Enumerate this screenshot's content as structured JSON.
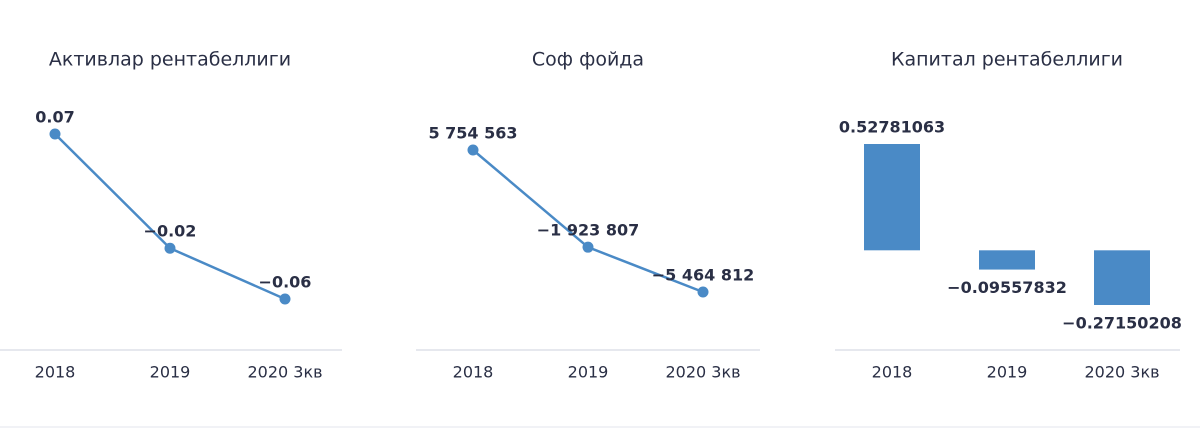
{
  "chart_data": [
    {
      "type": "line",
      "title": "Активлар рентабеллиги",
      "categories": [
        "2018",
        "2019",
        "2020 3кв"
      ],
      "values": [
        0.07,
        -0.02,
        -0.06
      ],
      "value_labels": [
        "0.07",
        "−0.02",
        "−0.06"
      ],
      "color": "#4a8ac6"
    },
    {
      "type": "line",
      "title": "Соф фойда",
      "categories": [
        "2018",
        "2019",
        "2020 3кв"
      ],
      "values": [
        5754563,
        -1923807,
        -5464812
      ],
      "value_labels": [
        "5 754 563",
        "−1 923 807",
        "−5 464 812"
      ],
      "color": "#4a8ac6"
    },
    {
      "type": "bar",
      "title": "Капитал рентабеллиги",
      "categories": [
        "2018",
        "2019",
        "2020 3кв"
      ],
      "values": [
        0.52781063,
        -0.09557832,
        -0.27150208
      ],
      "value_labels": [
        "0.52781063",
        "−0.09557832",
        "−0.27150208"
      ],
      "color": "#4a8ac6"
    }
  ]
}
